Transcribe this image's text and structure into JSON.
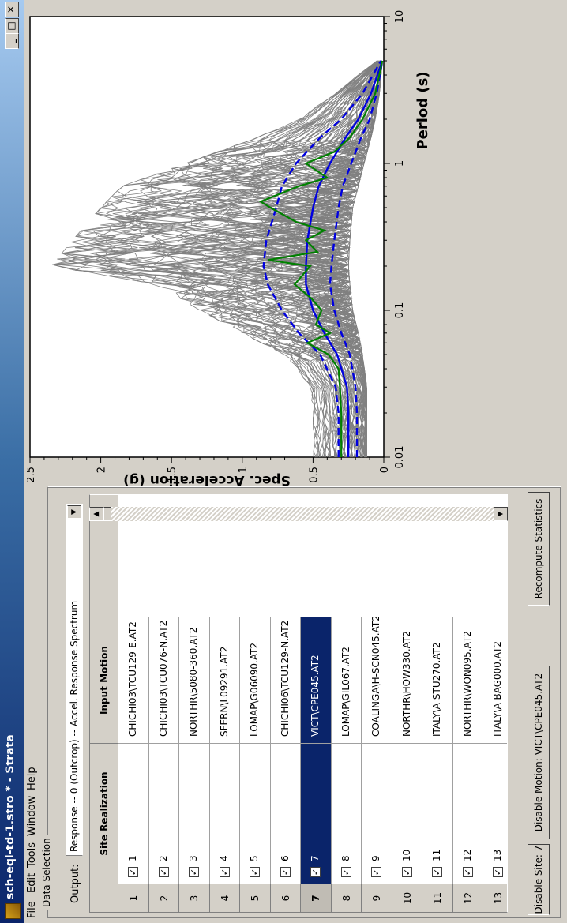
{
  "window": {
    "title": "sch-eql-td-1.stro * - Strata",
    "minimize": "_",
    "maximize": "□",
    "close": "✕"
  },
  "menu": [
    "File",
    "Edit",
    "Tools",
    "Window",
    "Help"
  ],
  "data_selection": {
    "group_title": "Data Selection",
    "output_label": "Output:",
    "output_value": "Response -- 0 (Outcrop) -- Accel. Response Spectrum",
    "columns": {
      "site": "Site Realization",
      "motion": "Input Motion"
    },
    "selected_row": 7,
    "rows": [
      {
        "num": "1",
        "site": "1",
        "motion": "CHICHI03\\TCU129-E.AT2",
        "checked": true
      },
      {
        "num": "2",
        "site": "2",
        "motion": "CHICHI03\\TCU076-N.AT2",
        "checked": true
      },
      {
        "num": "3",
        "site": "3",
        "motion": "NORTHR\\5080-360.AT2",
        "checked": true
      },
      {
        "num": "4",
        "site": "4",
        "motion": "SFERN\\L09291.AT2",
        "checked": true
      },
      {
        "num": "5",
        "site": "5",
        "motion": "LOMAP\\G06090.AT2",
        "checked": true
      },
      {
        "num": "6",
        "site": "6",
        "motion": "CHICHI06\\TCU129-N.AT2",
        "checked": true
      },
      {
        "num": "7",
        "site": "7",
        "motion": "VICT\\CPE045.AT2",
        "checked": true
      },
      {
        "num": "8",
        "site": "8",
        "motion": "LOMAP\\GIL067.AT2",
        "checked": true
      },
      {
        "num": "9",
        "site": "9",
        "motion": "COALINGA\\H-SCN045.AT2",
        "checked": true
      },
      {
        "num": "10",
        "site": "10",
        "motion": "NORTHR\\HOW330.AT2",
        "checked": true
      },
      {
        "num": "11",
        "site": "11",
        "motion": "ITALY\\A-STU270.AT2",
        "checked": true
      },
      {
        "num": "12",
        "site": "12",
        "motion": "NORTHR\\WON095.AT2",
        "checked": true
      },
      {
        "num": "13",
        "site": "13",
        "motion": "ITALY\\A-BAG000.AT2",
        "checked": true
      }
    ]
  },
  "buttons": {
    "disable_site": "Disable Site: 7",
    "disable_motion": "Disable Motion: VICT\\CPE045.AT2",
    "recompute": "Recompute Statistics"
  },
  "chart_data": {
    "type": "line",
    "xlabel": "Period (s)",
    "ylabel": "Spec. Acceleration (g)",
    "x_scale": "log",
    "xlim": [
      0.01,
      10
    ],
    "ylim": [
      0,
      2.5
    ],
    "x_ticks": [
      "0.01",
      "0.1",
      "1",
      "10"
    ],
    "y_ticks": [
      "0",
      "0.5",
      "1",
      "1.5",
      "2",
      "2.5"
    ],
    "colors": {
      "realizations": "#808080",
      "median": "#0000e0",
      "selected": "#008000"
    },
    "series": [
      {
        "style": "gray-band",
        "x": [
          0.01,
          0.02,
          0.03,
          0.05,
          0.07,
          0.1,
          0.15,
          0.2,
          0.3,
          0.5,
          0.7,
          1,
          1.5,
          2,
          3,
          5
        ],
        "upper": [
          0.5,
          0.5,
          0.52,
          0.7,
          1.0,
          1.3,
          1.6,
          2.35,
          2.2,
          2.0,
          1.85,
          1.4,
          0.9,
          0.6,
          0.35,
          0.05
        ],
        "lower": [
          0.12,
          0.12,
          0.12,
          0.15,
          0.18,
          0.22,
          0.24,
          0.25,
          0.24,
          0.22,
          0.18,
          0.14,
          0.09,
          0.06,
          0.03,
          0.01
        ]
      },
      {
        "style": "dashed",
        "x": [
          0.01,
          0.02,
          0.03,
          0.05,
          0.07,
          0.1,
          0.15,
          0.2,
          0.3,
          0.5,
          0.7,
          1,
          1.5,
          2,
          3,
          5
        ],
        "y": [
          0.32,
          0.32,
          0.34,
          0.45,
          0.6,
          0.72,
          0.82,
          0.85,
          0.83,
          0.76,
          0.72,
          0.62,
          0.45,
          0.3,
          0.15,
          0.02
        ]
      },
      {
        "style": "solid",
        "x": [
          0.01,
          0.02,
          0.03,
          0.05,
          0.07,
          0.1,
          0.15,
          0.2,
          0.3,
          0.5,
          0.7,
          1,
          1.5,
          2,
          3,
          5
        ],
        "y": [
          0.25,
          0.25,
          0.26,
          0.33,
          0.42,
          0.5,
          0.55,
          0.55,
          0.54,
          0.5,
          0.46,
          0.38,
          0.27,
          0.18,
          0.09,
          0.01
        ]
      },
      {
        "style": "dashed",
        "x": [
          0.01,
          0.02,
          0.03,
          0.05,
          0.07,
          0.1,
          0.15,
          0.2,
          0.3,
          0.5,
          0.7,
          1,
          1.5,
          2,
          3,
          5
        ],
        "y": [
          0.19,
          0.19,
          0.2,
          0.24,
          0.3,
          0.35,
          0.38,
          0.37,
          0.35,
          0.32,
          0.29,
          0.23,
          0.16,
          0.1,
          0.05,
          0.01
        ]
      },
      {
        "style": "selected",
        "x": [
          0.01,
          0.02,
          0.03,
          0.04,
          0.05,
          0.06,
          0.07,
          0.08,
          0.1,
          0.12,
          0.15,
          0.2,
          0.22,
          0.25,
          0.3,
          0.35,
          0.4,
          0.5,
          0.55,
          0.7,
          0.8,
          1,
          1.2,
          1.5,
          2,
          3,
          5
        ],
        "y": [
          0.3,
          0.3,
          0.31,
          0.32,
          0.39,
          0.54,
          0.38,
          0.48,
          0.44,
          0.51,
          0.63,
          0.52,
          0.82,
          0.47,
          0.55,
          0.42,
          0.62,
          0.8,
          0.87,
          0.6,
          0.4,
          0.55,
          0.35,
          0.24,
          0.15,
          0.06,
          0.01
        ]
      }
    ]
  }
}
